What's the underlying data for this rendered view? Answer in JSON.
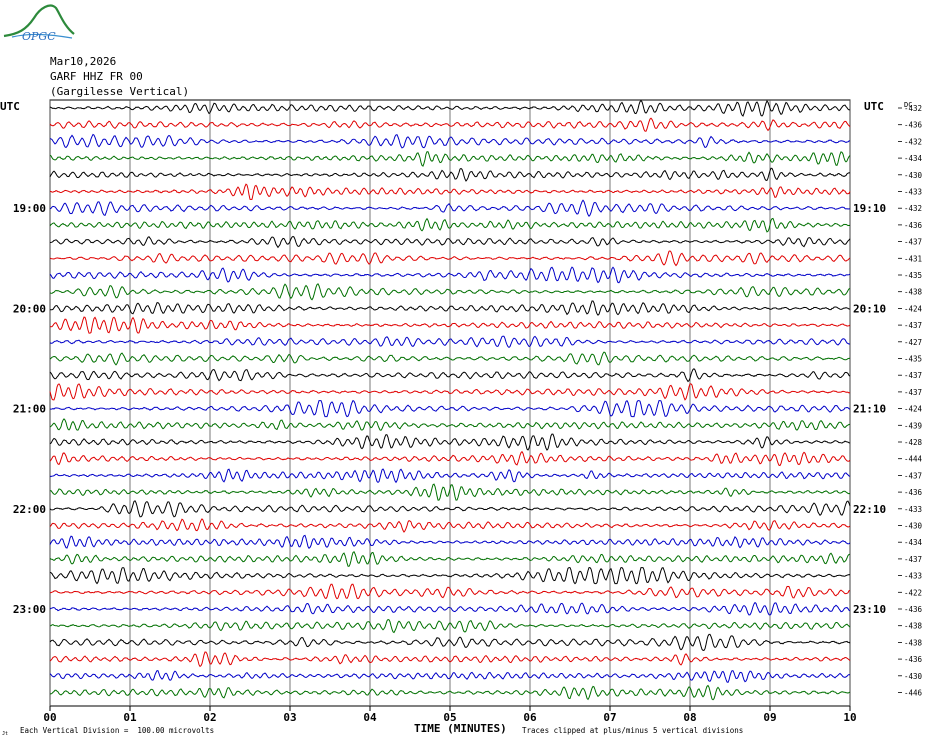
{
  "logo": {
    "text": "OPGC",
    "icon": "ofgc-volcano-logo"
  },
  "header": {
    "date": "Mar10,2026",
    "station": "GARF HHZ FR 00",
    "location": "(Gargilesse Vertical)"
  },
  "left_axis_title": "UTC",
  "right_axis_title": "UTC",
  "dc_title": "DC",
  "footer": {
    "scale_note": "Each Vertical Division =  100.00 microvolts",
    "clip_note": "Traces clipped at plus/minus 5 vertical divisions",
    "corner_mark": "Jt"
  },
  "chart_data": {
    "type": "line",
    "title": "",
    "xlabel": "TIME (MINUTES)",
    "ylabel": "",
    "xlim": [
      0,
      10
    ],
    "x_ticks": [
      "00",
      "01",
      "02",
      "03",
      "04",
      "05",
      "06",
      "07",
      "08",
      "09",
      "10"
    ],
    "row_minutes": 10,
    "row_count": 36,
    "trace_colors": [
      "#000000",
      "#e00000",
      "#0000c8",
      "#007000"
    ],
    "left_time_labels": [
      {
        "row": 6,
        "text": "19:00"
      },
      {
        "row": 12,
        "text": "20:00"
      },
      {
        "row": 18,
        "text": "21:00"
      },
      {
        "row": 24,
        "text": "22:00"
      },
      {
        "row": 30,
        "text": "23:00"
      }
    ],
    "right_time_labels": [
      {
        "row": 6,
        "text": "19:10"
      },
      {
        "row": 12,
        "text": "20:10"
      },
      {
        "row": 18,
        "text": "21:10"
      },
      {
        "row": 24,
        "text": "22:10"
      },
      {
        "row": 30,
        "text": "23:10"
      }
    ],
    "dc_offsets": [
      -432,
      -436,
      -432,
      -434,
      -430,
      -433,
      -432,
      -436,
      -437,
      -431,
      -435,
      -438,
      -424,
      -437,
      -427,
      -435,
      -437,
      -437,
      -424,
      -439,
      -428,
      -444,
      -437,
      -436,
      -433,
      -430,
      -434,
      -437,
      -433,
      -422,
      -436,
      -438,
      -438,
      -436,
      -430,
      -446
    ]
  }
}
